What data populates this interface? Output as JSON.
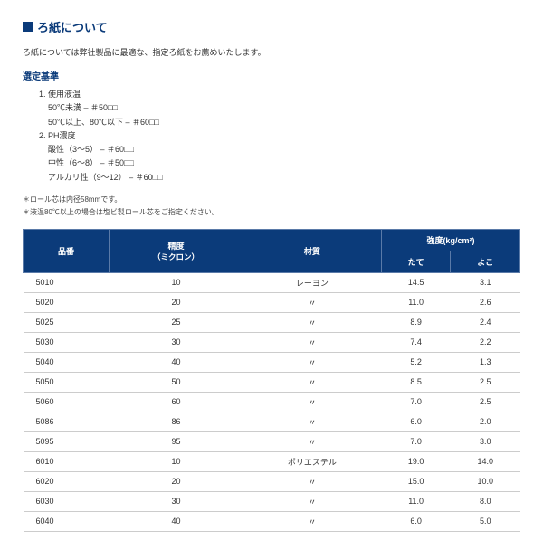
{
  "title": "ろ紙について",
  "intro": "ろ紙については弊社製品に最適な、指定ろ紙をお薦めいたします。",
  "subheading": "選定基準",
  "criteria": {
    "item1_label": "1. 使用液温",
    "item1_line1": "50℃未満 – ＃50□□",
    "item1_line2": "50℃以上、80℃以下 – ＃60□□",
    "item2_label": "2. PH濃度",
    "item2_line1": "酸性（3〜5）  – ＃60□□",
    "item2_line2": "中性（6〜8）  – ＃50□□",
    "item2_line3": "アルカリ性（9〜12）  – ＃60□□"
  },
  "notes": {
    "n1": "＊ロール芯は内径58mmです。",
    "n2": "＊液温80℃以上の場合は塩ビ製ロール芯をご指定ください。"
  },
  "table": {
    "headers": {
      "col1": "品番",
      "col2": "精度",
      "col2_sub": "（ミクロン）",
      "col3": "材質",
      "col4": "強度(kg/cm²)",
      "col4a": "たて",
      "col4b": "よこ"
    },
    "rows": [
      {
        "c1": "5010",
        "c2": "10",
        "c3": "レーヨン",
        "c4": "14.5",
        "c5": "3.1"
      },
      {
        "c1": "5020",
        "c2": "20",
        "c3": "〃",
        "c4": "11.0",
        "c5": "2.6"
      },
      {
        "c1": "5025",
        "c2": "25",
        "c3": "〃",
        "c4": "8.9",
        "c5": "2.4"
      },
      {
        "c1": "5030",
        "c2": "30",
        "c3": "〃",
        "c4": "7.4",
        "c5": "2.2"
      },
      {
        "c1": "5040",
        "c2": "40",
        "c3": "〃",
        "c4": "5.2",
        "c5": "1.3"
      },
      {
        "c1": "5050",
        "c2": "50",
        "c3": "〃",
        "c4": "8.5",
        "c5": "2.5"
      },
      {
        "c1": "5060",
        "c2": "60",
        "c3": "〃",
        "c4": "7.0",
        "c5": "2.5"
      },
      {
        "c1": "5086",
        "c2": "86",
        "c3": "〃",
        "c4": "6.0",
        "c5": "2.0"
      },
      {
        "c1": "5095",
        "c2": "95",
        "c3": "〃",
        "c4": "7.0",
        "c5": "3.0"
      },
      {
        "c1": "6010",
        "c2": "10",
        "c3": "ポリエステル",
        "c4": "19.0",
        "c5": "14.0"
      },
      {
        "c1": "6020",
        "c2": "20",
        "c3": "〃",
        "c4": "15.0",
        "c5": "10.0"
      },
      {
        "c1": "6030",
        "c2": "30",
        "c3": "〃",
        "c4": "11.0",
        "c5": "8.0"
      },
      {
        "c1": "6040",
        "c2": "40",
        "c3": "〃",
        "c4": "6.0",
        "c5": "5.0"
      }
    ]
  }
}
